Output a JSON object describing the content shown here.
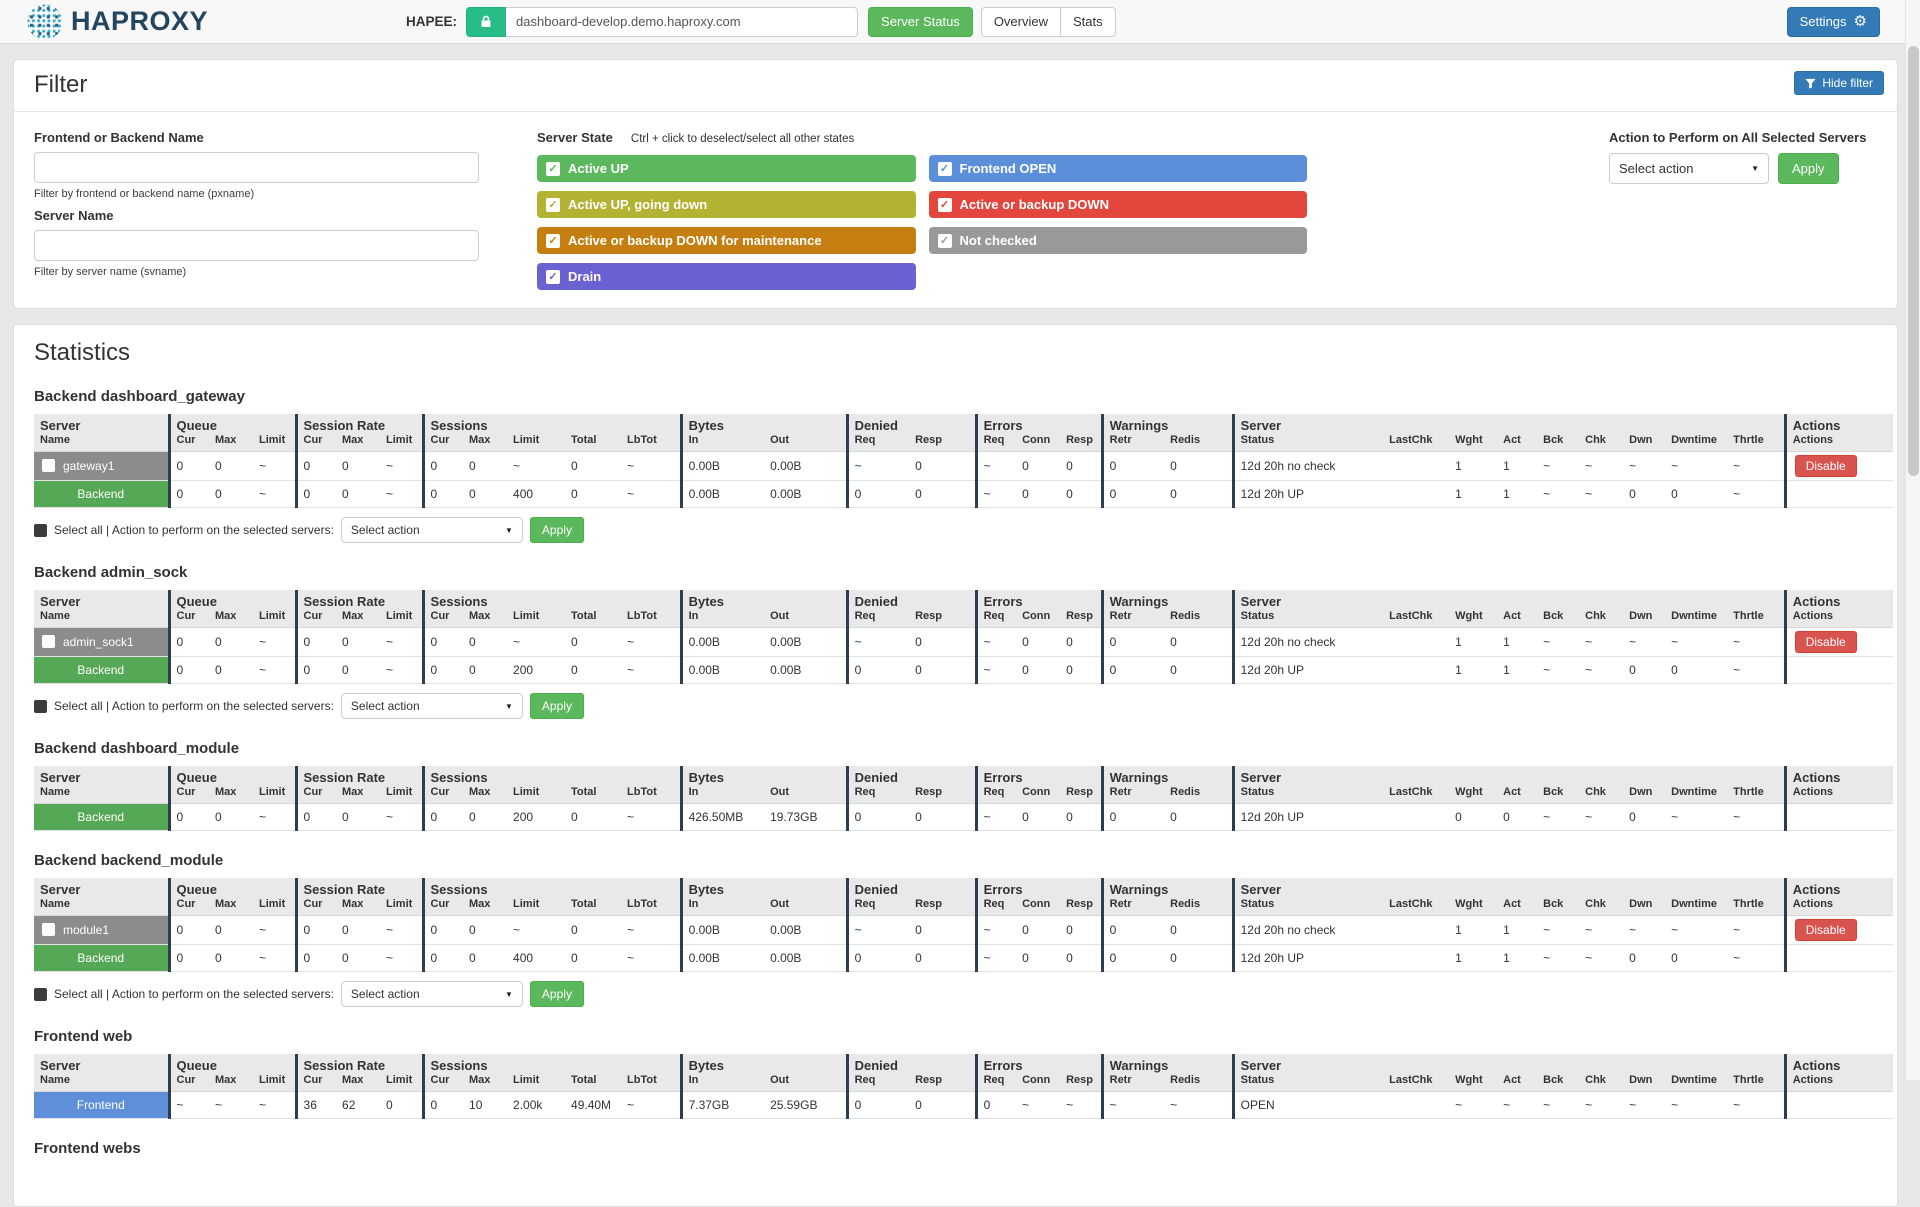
{
  "navbar": {
    "brand": "HAPROXY",
    "hapee_label": "HAPEE:",
    "url_value": "dashboard-develop.demo.haproxy.com",
    "server_status_label": "Server Status",
    "overview_label": "Overview",
    "stats_label": "Stats",
    "settings_label": "Settings"
  },
  "filter": {
    "title": "Filter",
    "hide_filter_label": "Hide filter",
    "pxname_label": "Frontend or Backend Name",
    "pxname_help": "Filter by frontend or backend name (pxname)",
    "svname_label": "Server Name",
    "svname_help": "Filter by server name (svname)",
    "server_state_label": "Server State",
    "server_state_hint": "Ctrl + click to deselect/select all other states",
    "states_left": [
      {
        "label": "Active UP",
        "color": "#5cb85c",
        "checked": true
      },
      {
        "label": "Active UP, going down",
        "color": "#b2b233",
        "checked": true
      },
      {
        "label": "Active or backup DOWN for maintenance",
        "color": "#c57f11",
        "checked": true
      },
      {
        "label": "Drain",
        "color": "#6a62d2",
        "checked": true
      }
    ],
    "states_right": [
      {
        "label": "Frontend OPEN",
        "color": "#5b8fd9",
        "checked": true
      },
      {
        "label": "Active or backup DOWN",
        "color": "#e2463d",
        "checked": true
      },
      {
        "label": "Not checked",
        "color": "#999999",
        "checked": true
      }
    ],
    "action_label": "Action to Perform on All Selected Servers",
    "action_select_value": "Select action",
    "apply_label": "Apply"
  },
  "statistics": {
    "title": "Statistics",
    "select_all_text": "Select all | Action to perform on the selected servers:",
    "select_action_value": "Select action",
    "apply_label": "Apply",
    "table_groups": [
      {
        "label": "Server",
        "cols": [
          "Name"
        ]
      },
      {
        "label": "Queue",
        "cols": [
          "Cur",
          "Max",
          "Limit"
        ]
      },
      {
        "label": "Session Rate",
        "cols": [
          "Cur",
          "Max",
          "Limit"
        ]
      },
      {
        "label": "Sessions",
        "cols": [
          "Cur",
          "Max",
          "Limit",
          "Total",
          "LbTot"
        ]
      },
      {
        "label": "Bytes",
        "cols": [
          "In",
          "Out"
        ]
      },
      {
        "label": "Denied",
        "cols": [
          "Req",
          "Resp"
        ]
      },
      {
        "label": "Errors",
        "cols": [
          "Req",
          "Conn",
          "Resp"
        ]
      },
      {
        "label": "Warnings",
        "cols": [
          "Retr",
          "Redis"
        ]
      },
      {
        "label": "Server",
        "cols": [
          "Status",
          "LastChk",
          "Wght",
          "Act",
          "Bck",
          "Chk",
          "Dwn",
          "Dwntime",
          "Thrtle"
        ]
      },
      {
        "label": "Actions",
        "cols": [
          "Actions"
        ]
      }
    ],
    "sections": [
      {
        "title": "Backend dashboard_gateway",
        "select_all": true,
        "rows": [
          {
            "name": "gateway1",
            "type": "server",
            "checkbox": true,
            "action": "Disable",
            "cells": [
              "0",
              "0",
              "~",
              "0",
              "0",
              "~",
              "0",
              "0",
              "~",
              "0",
              "~",
              "0.00B",
              "0.00B",
              "~",
              "0",
              "~",
              "0",
              "0",
              "0",
              "0",
              "12d 20h no check",
              "",
              "1",
              "1",
              "~",
              "~",
              "~",
              "~",
              "~"
            ]
          },
          {
            "name": "Backend",
            "type": "backend",
            "checkbox": false,
            "action": null,
            "cells": [
              "0",
              "0",
              "~",
              "0",
              "0",
              "~",
              "0",
              "0",
              "400",
              "0",
              "~",
              "0.00B",
              "0.00B",
              "0",
              "0",
              "~",
              "0",
              "0",
              "0",
              "0",
              "12d 20h UP",
              "",
              "1",
              "1",
              "~",
              "~",
              "0",
              "0",
              "~"
            ]
          }
        ]
      },
      {
        "title": "Backend admin_sock",
        "select_all": true,
        "rows": [
          {
            "name": "admin_sock1",
            "type": "server",
            "checkbox": true,
            "action": "Disable",
            "cells": [
              "0",
              "0",
              "~",
              "0",
              "0",
              "~",
              "0",
              "0",
              "~",
              "0",
              "~",
              "0.00B",
              "0.00B",
              "~",
              "0",
              "~",
              "0",
              "0",
              "0",
              "0",
              "12d 20h no check",
              "",
              "1",
              "1",
              "~",
              "~",
              "~",
              "~",
              "~"
            ]
          },
          {
            "name": "Backend",
            "type": "backend",
            "checkbox": false,
            "action": null,
            "cells": [
              "0",
              "0",
              "~",
              "0",
              "0",
              "~",
              "0",
              "0",
              "200",
              "0",
              "~",
              "0.00B",
              "0.00B",
              "0",
              "0",
              "~",
              "0",
              "0",
              "0",
              "0",
              "12d 20h UP",
              "",
              "1",
              "1",
              "~",
              "~",
              "0",
              "0",
              "~"
            ]
          }
        ]
      },
      {
        "title": "Backend dashboard_module",
        "select_all": false,
        "rows": [
          {
            "name": "Backend",
            "type": "backend",
            "checkbox": false,
            "action": null,
            "cells": [
              "0",
              "0",
              "~",
              "0",
              "0",
              "~",
              "0",
              "0",
              "200",
              "0",
              "~",
              "426.50MB",
              "19.73GB",
              "0",
              "0",
              "~",
              "0",
              "0",
              "0",
              "0",
              "12d 20h UP",
              "",
              "0",
              "0",
              "~",
              "~",
              "0",
              "~",
              "~"
            ]
          }
        ]
      },
      {
        "title": "Backend backend_module",
        "select_all": true,
        "rows": [
          {
            "name": "module1",
            "type": "server",
            "checkbox": true,
            "action": "Disable",
            "cells": [
              "0",
              "0",
              "~",
              "0",
              "0",
              "~",
              "0",
              "0",
              "~",
              "0",
              "~",
              "0.00B",
              "0.00B",
              "~",
              "0",
              "~",
              "0",
              "0",
              "0",
              "0",
              "12d 20h no check",
              "",
              "1",
              "1",
              "~",
              "~",
              "~",
              "~",
              "~"
            ]
          },
          {
            "name": "Backend",
            "type": "backend",
            "checkbox": false,
            "action": null,
            "cells": [
              "0",
              "0",
              "~",
              "0",
              "0",
              "~",
              "0",
              "0",
              "400",
              "0",
              "~",
              "0.00B",
              "0.00B",
              "0",
              "0",
              "~",
              "0",
              "0",
              "0",
              "0",
              "12d 20h UP",
              "",
              "1",
              "1",
              "~",
              "~",
              "0",
              "0",
              "~"
            ]
          }
        ]
      },
      {
        "title": "Frontend web",
        "select_all": false,
        "rows": [
          {
            "name": "Frontend",
            "type": "frontend",
            "checkbox": false,
            "action": null,
            "cells": [
              "~",
              "~",
              "~",
              "36",
              "62",
              "0",
              "0",
              "10",
              "2.00k",
              "49.40M",
              "~",
              "7.37GB",
              "25.59GB",
              "0",
              "0",
              "0",
              "~",
              "~",
              "~",
              "~",
              "OPEN",
              "",
              "~",
              "~",
              "~",
              "~",
              "~",
              "~",
              "~"
            ]
          }
        ]
      },
      {
        "title": "Frontend webs",
        "select_all": false,
        "rows": []
      }
    ]
  }
}
